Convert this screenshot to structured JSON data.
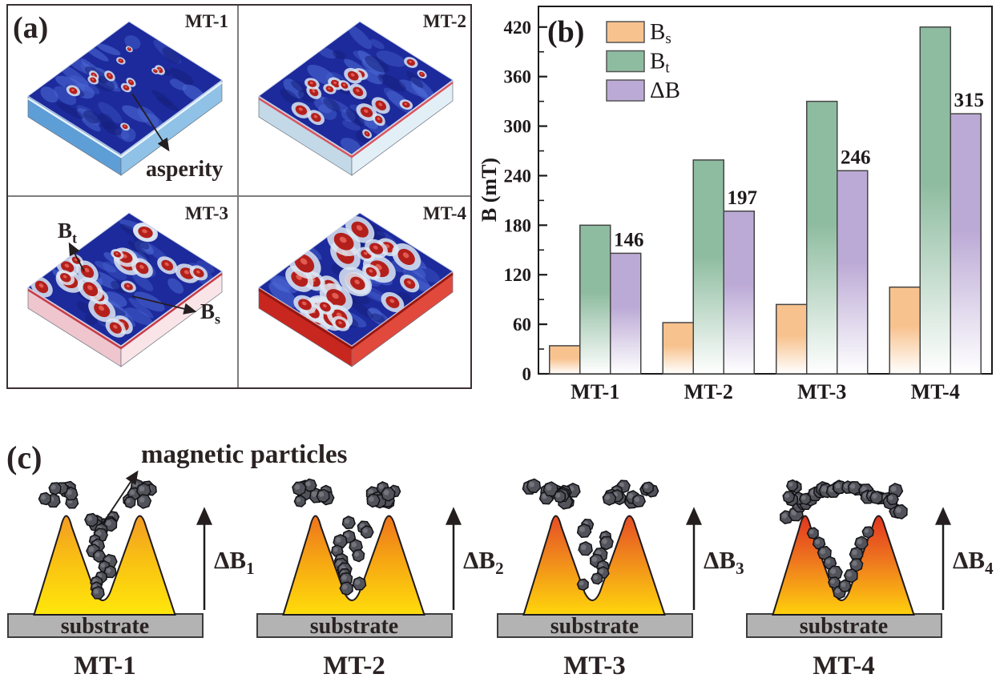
{
  "figure": {
    "background": "#ffffff",
    "text_color": "#2a2223"
  },
  "panel_a": {
    "label": "(a)",
    "annotations": {
      "asperity": "asperity",
      "bt_main": "B",
      "bt_sub": "t",
      "bs_main": "B",
      "bs_sub": "s"
    },
    "surface_base_color": "#1d2a9c",
    "asperity_color": "#b3201c",
    "samples": [
      {
        "name": "MT-1",
        "side_colors": [
          "#5e9ed6",
          "#8fc2e6"
        ],
        "edge_stripe": "#eaf3fb",
        "red_blob_count": 11,
        "red_blob_size": 4
      },
      {
        "name": "MT-2",
        "side_colors": [
          "#c3d9e8",
          "#e2eff6"
        ],
        "edge_stripe": "#d95560",
        "red_blob_count": 17,
        "red_blob_size": 6
      },
      {
        "name": "MT-3",
        "side_colors": [
          "#efc6ce",
          "#f9e4e8"
        ],
        "edge_stripe": "#c43d47",
        "red_blob_count": 22,
        "red_blob_size": 8
      },
      {
        "name": "MT-4",
        "side_colors": [
          "#c7271e",
          "#e1493d"
        ],
        "edge_stripe": "#8e1713",
        "red_blob_count": 28,
        "red_blob_size": 10
      }
    ]
  },
  "chart_data": {
    "type": "bar",
    "panel_label": "(b)",
    "categories": [
      "MT-1",
      "MT-2",
      "MT-3",
      "MT-4"
    ],
    "series": [
      {
        "name": "Bs",
        "legend_main": "B",
        "legend_sub": "s",
        "color": "#f8c28e",
        "values": [
          34,
          62,
          84,
          105
        ]
      },
      {
        "name": "Bt",
        "legend_main": "B",
        "legend_sub": "t",
        "color": "#8ebca0",
        "values": [
          180,
          259,
          330,
          420
        ]
      },
      {
        "name": "DeltaB",
        "legend_main": "ΔB",
        "legend_sub": "",
        "color": "#bcaad6",
        "values": [
          146,
          197,
          246,
          315
        ],
        "data_labels": [
          "146",
          "197",
          "246",
          "315"
        ]
      }
    ],
    "ylabel": "B (mT)",
    "ylim": [
      0,
      445
    ],
    "yticks": [
      0,
      60,
      120,
      180,
      240,
      300,
      360,
      420
    ],
    "minor_tick_step": 30,
    "legend_position": "top-left-inside",
    "grid": false,
    "frame_color": "#1a1a1a",
    "bar_outline_color": "#454545"
  },
  "panel_c": {
    "label": "(c)",
    "annotation": "magnetic particles",
    "substrate_color": "#b3b3b3",
    "particle_color": "#52525a",
    "items": [
      {
        "name": "MT-1",
        "substrate_label": "substrate",
        "delta_main": "ΔB",
        "delta_sub": "1",
        "peak_colors": [
          "#f09228",
          "#f9c013",
          "#ffe70b"
        ],
        "particle_layout": "valley-fill"
      },
      {
        "name": "MT-2",
        "substrate_label": "substrate",
        "delta_main": "ΔB",
        "delta_sub": "2",
        "peak_colors": [
          "#ec671f",
          "#f6a513",
          "#ffdd0b"
        ],
        "particle_layout": "valley-scatter"
      },
      {
        "name": "MT-3",
        "substrate_label": "substrate",
        "delta_main": "ΔB",
        "delta_sub": "3",
        "peak_colors": [
          "#e33d26",
          "#f08a1c",
          "#ffd60b"
        ],
        "particle_layout": "peaks-heavy"
      },
      {
        "name": "MT-4",
        "substrate_label": "substrate",
        "delta_main": "ΔB",
        "delta_sub": "4",
        "peak_colors": [
          "#dd2420",
          "#ee751f",
          "#ffd10c"
        ],
        "particle_layout": "arch-bridge"
      }
    ]
  }
}
